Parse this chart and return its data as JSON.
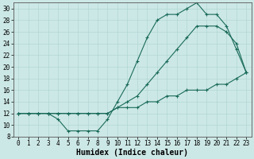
{
  "xlabel": "Humidex (Indice chaleur)",
  "xlim": [
    -0.5,
    23.5
  ],
  "ylim": [
    8,
    31
  ],
  "xticks": [
    0,
    1,
    2,
    3,
    4,
    5,
    6,
    7,
    8,
    9,
    10,
    11,
    12,
    13,
    14,
    15,
    16,
    17,
    18,
    19,
    20,
    21,
    22,
    23
  ],
  "yticks": [
    8,
    10,
    12,
    14,
    16,
    18,
    20,
    22,
    24,
    26,
    28,
    30
  ],
  "line_color": "#1a6b5a",
  "bg_color": "#cce8e6",
  "grid_color": "#aad4d0",
  "curve1_x": [
    0,
    1,
    2,
    3,
    4,
    5,
    6,
    7,
    8,
    9,
    10,
    11,
    12,
    13,
    14,
    15,
    16,
    17,
    18,
    19,
    20,
    21,
    22,
    23
  ],
  "curve1_y": [
    12,
    12,
    12,
    12,
    11,
    9,
    9,
    9,
    9,
    11,
    14,
    17,
    21,
    25,
    28,
    29,
    29,
    30,
    31,
    29,
    29,
    27,
    23,
    19
  ],
  "curve2_x": [
    0,
    1,
    2,
    3,
    4,
    5,
    6,
    7,
    8,
    9,
    10,
    11,
    12,
    13,
    14,
    15,
    16,
    17,
    18,
    19,
    20,
    21,
    22,
    23
  ],
  "curve2_y": [
    12,
    12,
    12,
    12,
    12,
    12,
    12,
    12,
    12,
    12,
    13,
    14,
    15,
    17,
    19,
    21,
    23,
    25,
    27,
    27,
    27,
    26,
    24,
    19
  ],
  "curve3_x": [
    0,
    1,
    2,
    3,
    4,
    5,
    6,
    7,
    8,
    9,
    10,
    11,
    12,
    13,
    14,
    15,
    16,
    17,
    18,
    19,
    20,
    21,
    22,
    23
  ],
  "curve3_y": [
    12,
    12,
    12,
    12,
    12,
    12,
    12,
    12,
    12,
    12,
    13,
    13,
    13,
    14,
    14,
    15,
    15,
    16,
    16,
    16,
    17,
    17,
    18,
    19
  ],
  "font_family": "monospace",
  "tick_fontsize": 5.5,
  "xlabel_fontsize": 7.0
}
